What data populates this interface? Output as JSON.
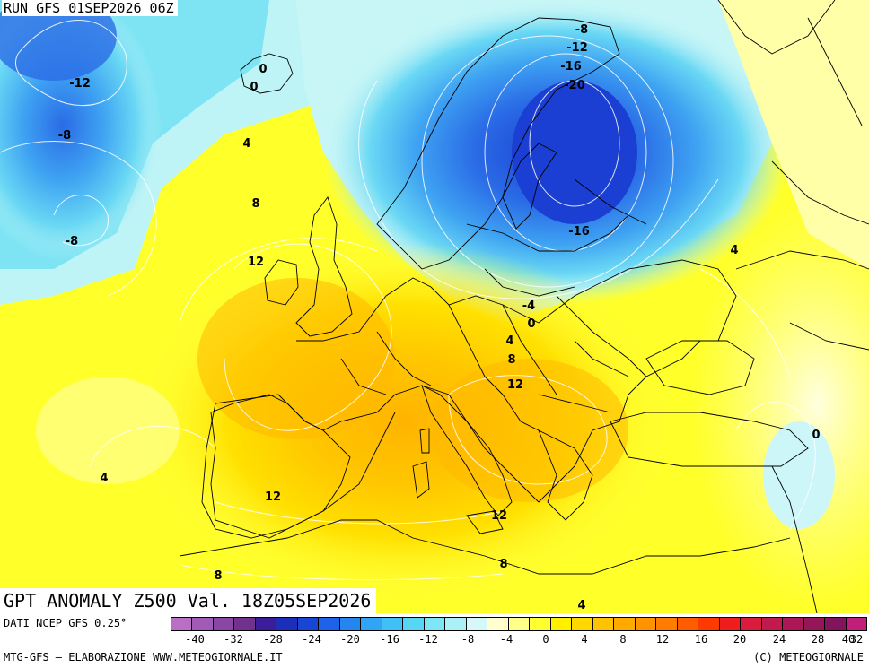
{
  "header": {
    "run": "RUN GFS 01SEP2026 06Z"
  },
  "title": "GPT ANOMALY Z500 Val. 18Z05SEP2026",
  "legend": {
    "source": "DATI NCEP GFS 0.25°",
    "ticks": [
      "-40",
      "-32",
      "-28",
      "-24",
      "-20",
      "-16",
      "-12",
      "-8",
      "-4",
      "0",
      "4",
      "8",
      "12",
      "16",
      "20",
      "24",
      "28",
      "32",
      "40"
    ],
    "colors": [
      "#b96fc6",
      "#a15bb7",
      "#8a46a4",
      "#73318f",
      "#3a1d9a",
      "#1b2fb8",
      "#1745d4",
      "#1d62e8",
      "#2686f0",
      "#32a4f4",
      "#40c0f6",
      "#56d6f4",
      "#7de6f4",
      "#aaf0f6",
      "#d6f8f8",
      "#ffffd0",
      "#ffff8a",
      "#ffff30",
      "#fff000",
      "#ffd800",
      "#ffc200",
      "#ffaa00",
      "#ff9300",
      "#ff7c00",
      "#ff5c00",
      "#ff3a00",
      "#ee1e1e",
      "#d81d3c",
      "#c21a4c",
      "#ab1855",
      "#96165a",
      "#82135c",
      "#c01f7a"
    ]
  },
  "footer": {
    "left": "MTG-GFS – ELABORAZIONE WWW.METEOGIORNALE.IT",
    "right": "(C) METEOGIORNALE"
  },
  "contour_labels": [
    {
      "text": "-12"
    },
    {
      "text": "-8"
    },
    {
      "text": "-8"
    },
    {
      "text": "0"
    },
    {
      "text": "0"
    },
    {
      "text": "4"
    },
    {
      "text": "8"
    },
    {
      "text": "12"
    },
    {
      "text": "-8"
    },
    {
      "text": "-12"
    },
    {
      "text": "-16"
    },
    {
      "text": "-20"
    },
    {
      "text": "-16"
    },
    {
      "text": "-4"
    },
    {
      "text": "0"
    },
    {
      "text": "4"
    },
    {
      "text": "8"
    },
    {
      "text": "12"
    },
    {
      "text": "4"
    },
    {
      "text": "0"
    },
    {
      "text": "4"
    },
    {
      "text": "12"
    },
    {
      "text": "12"
    },
    {
      "text": "8"
    },
    {
      "text": "8"
    },
    {
      "text": "4"
    }
  ]
}
